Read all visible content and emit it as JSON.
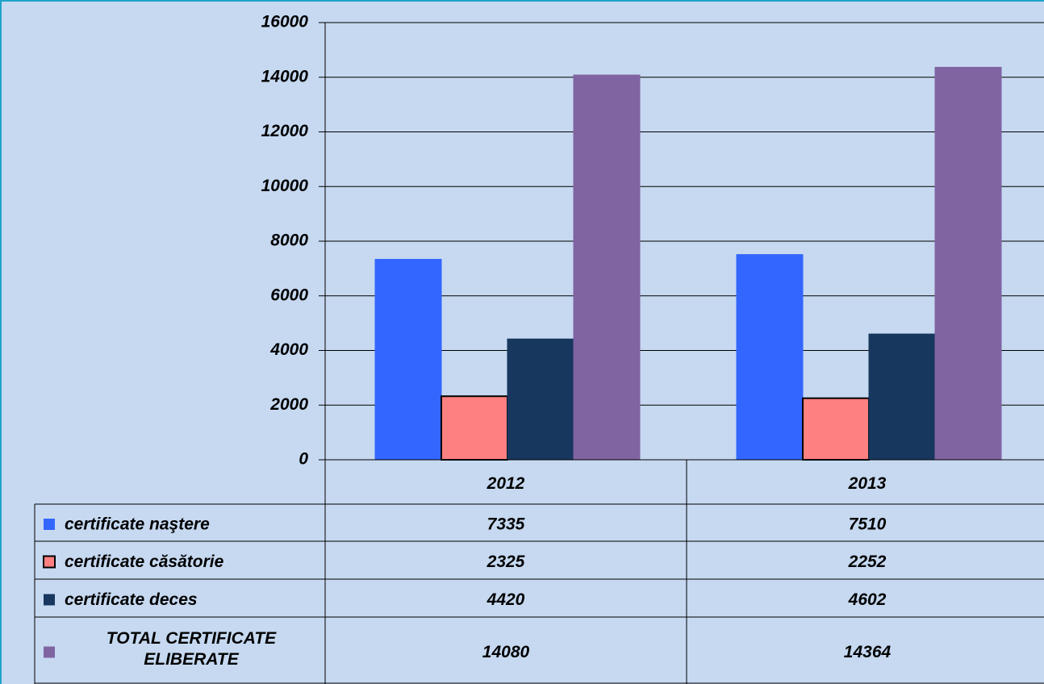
{
  "chart_data": {
    "type": "bar",
    "categories": [
      "2012",
      "2013"
    ],
    "series": [
      {
        "name": "certificate naştere",
        "color": "#3366ff",
        "values": [
          7335,
          7510
        ]
      },
      {
        "name": "certificate căsătorie",
        "color": "#ff8080",
        "values": [
          2325,
          2252
        ]
      },
      {
        "name": "certificate deces",
        "color": "#17375e",
        "values": [
          4420,
          4602
        ]
      },
      {
        "name": "TOTAL CERTIFICATE ELIBERATE",
        "color": "#8064a2",
        "values": [
          14080,
          14364
        ]
      }
    ],
    "ylim": [
      0,
      16000
    ],
    "yticks": [
      0,
      2000,
      4000,
      6000,
      8000,
      10000,
      12000,
      14000,
      16000
    ],
    "grid": true
  }
}
